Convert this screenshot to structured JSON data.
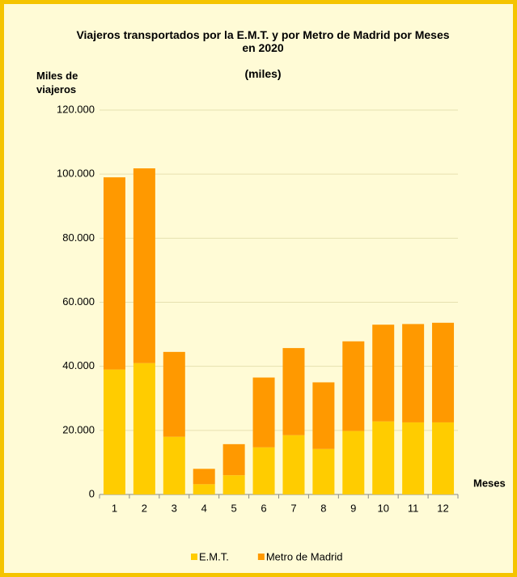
{
  "chart_data": {
    "type": "bar",
    "stacked": true,
    "title": "Viajeros transportados por la E.M.T. y por Metro de Madrid por Meses en 2020",
    "subtitle": "(miles)",
    "y_label": "Miles de viajeros",
    "x_label": "Meses",
    "categories": [
      "1",
      "2",
      "3",
      "4",
      "5",
      "6",
      "7",
      "8",
      "9",
      "10",
      "11",
      "12"
    ],
    "series": [
      {
        "name": "E.M.T.",
        "color": "#ffcc00",
        "values": [
          39000,
          41000,
          18000,
          3200,
          6000,
          14700,
          18500,
          14200,
          19800,
          22800,
          22500,
          22500
        ]
      },
      {
        "name": "Metro de Madrid",
        "color": "#ff9900",
        "values": [
          60000,
          60800,
          26500,
          4800,
          9700,
          21800,
          27200,
          20800,
          28000,
          30200,
          30700,
          31100
        ]
      }
    ],
    "ylim": [
      0,
      120000
    ],
    "yticks": [
      0,
      {
        "value": 20000,
        "label": "20.000"
      },
      {
        "value": 40000,
        "label": "40.000"
      },
      {
        "value": 60000,
        "label": "60.000"
      },
      {
        "value": 80000,
        "label": "80.000"
      },
      {
        "value": 100000,
        "label": "100.000"
      },
      {
        "value": 120000,
        "label": "120.000"
      }
    ],
    "grid": true,
    "legend": "bottom"
  }
}
